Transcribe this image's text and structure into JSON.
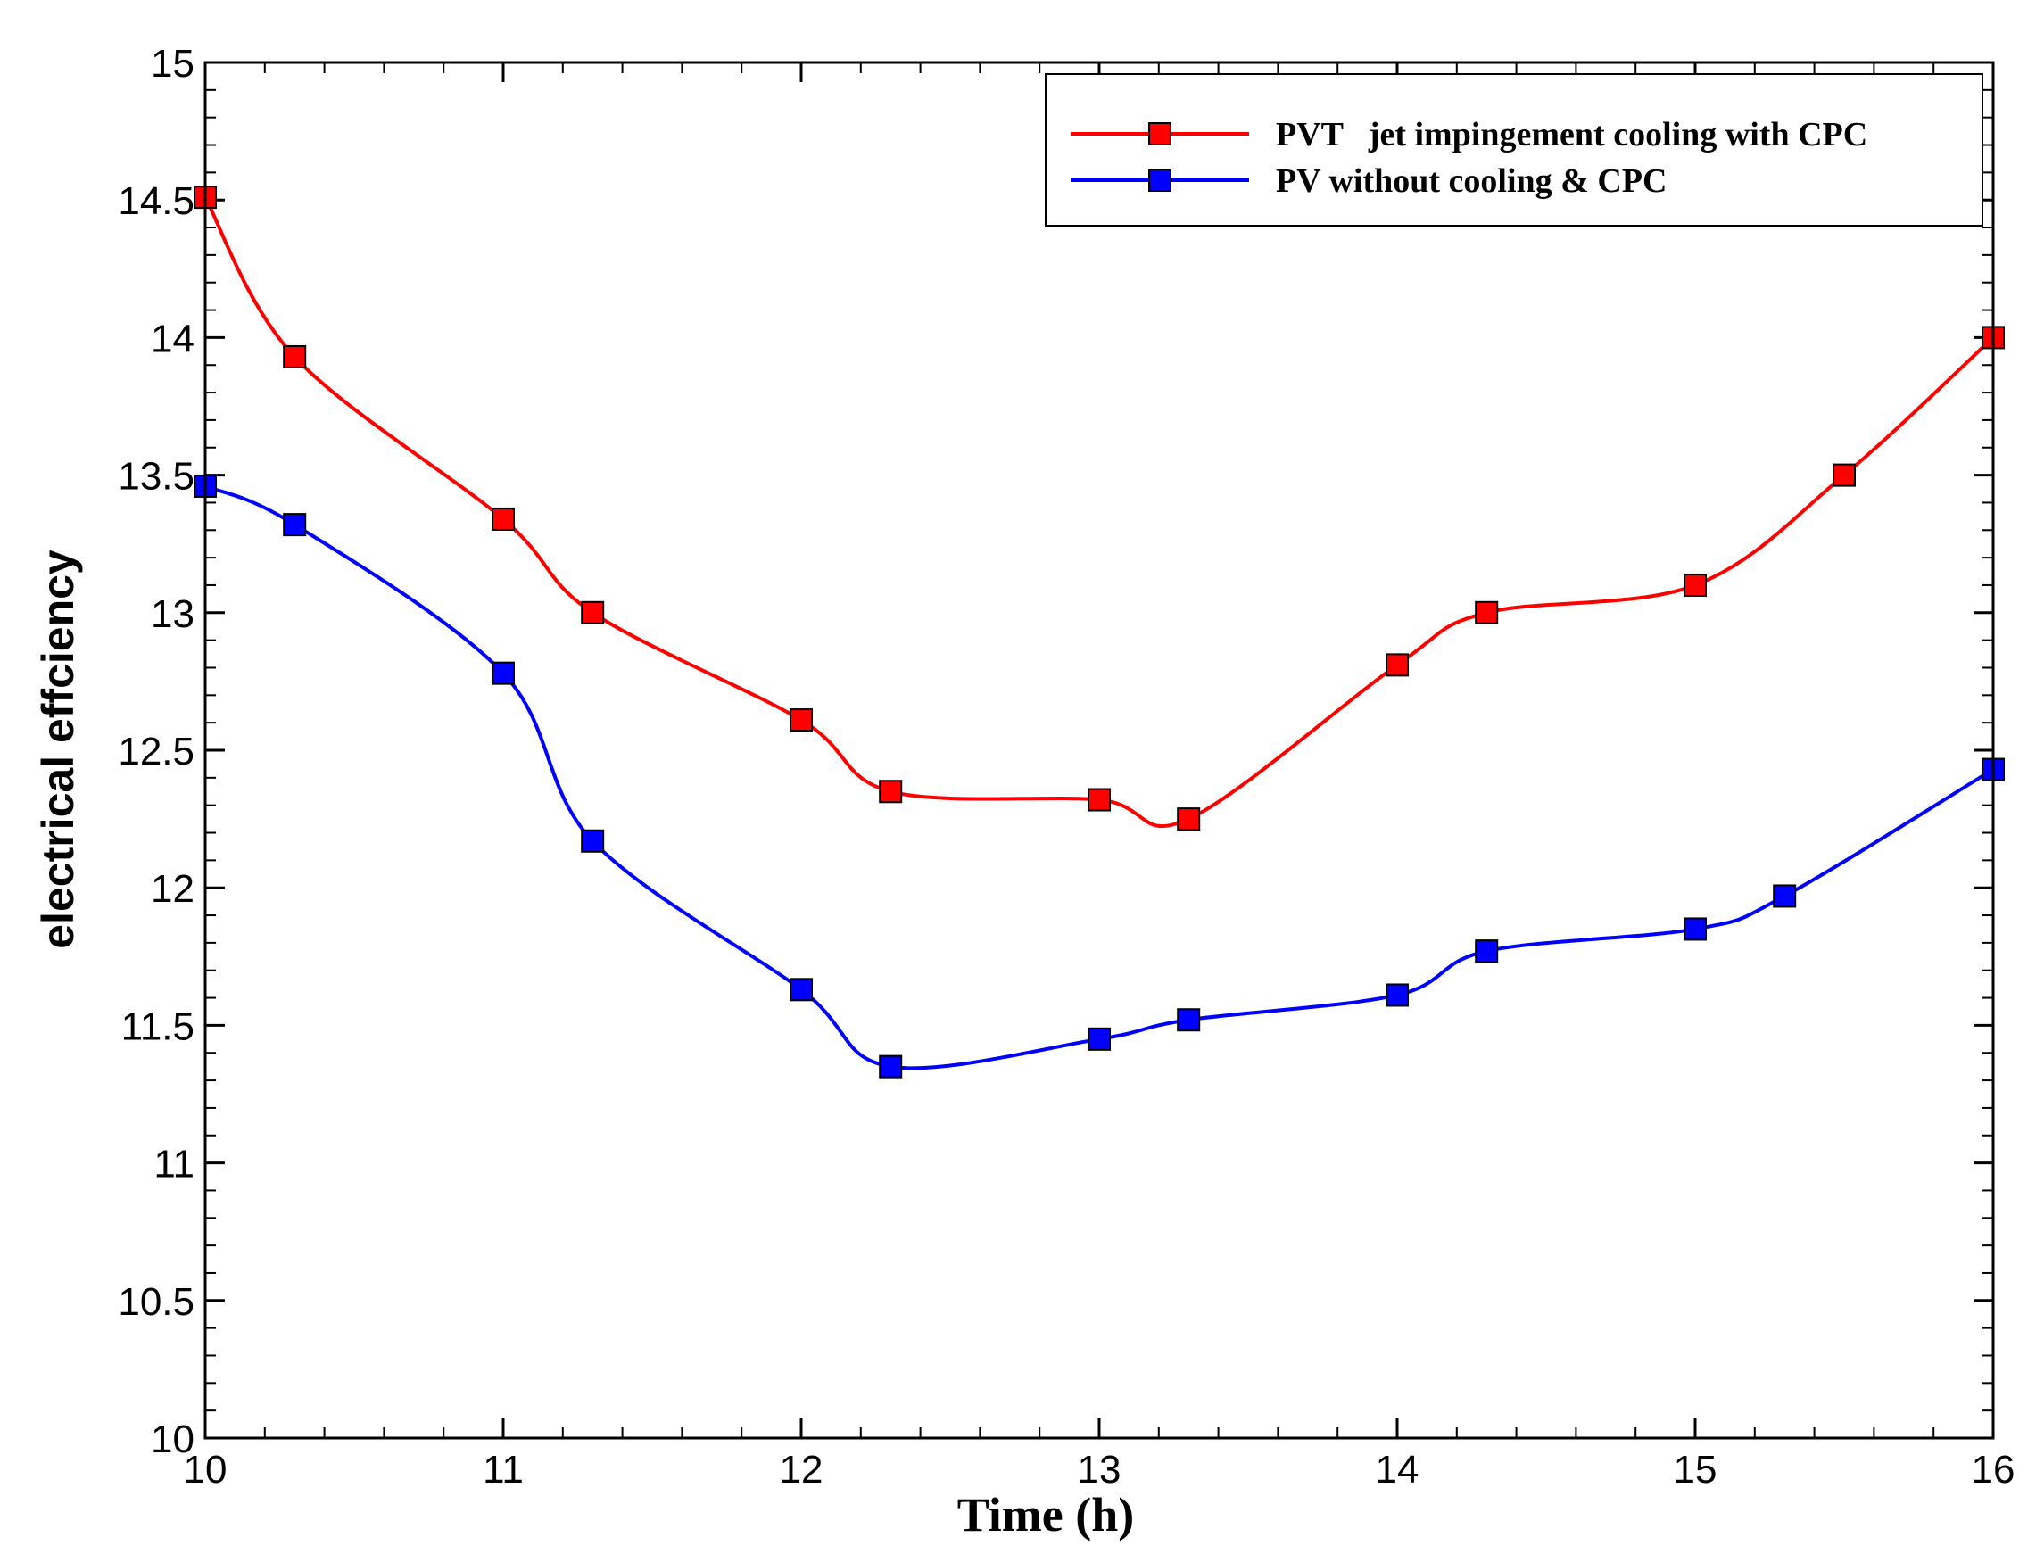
{
  "chart_data": {
    "type": "line",
    "title": "",
    "xlabel": "Time (h)",
    "ylabel": "electrical effciency",
    "xlim": [
      10,
      16
    ],
    "ylim": [
      10,
      15
    ],
    "x_ticks": [
      "10",
      "11",
      "12",
      "13",
      "14",
      "15",
      "16"
    ],
    "y_ticks": [
      "10",
      "10.5",
      "11",
      "11.5",
      "12",
      "12.5",
      "13",
      "13.5",
      "14",
      "14.5",
      "15"
    ],
    "x_minor_step": 0.2,
    "y_minor_step": 0.1,
    "grid": false,
    "legend_position": "top-right",
    "series": [
      {
        "name": "PVT   jet impingement cooling with CPC",
        "color": "#ff0000",
        "marker": "square",
        "x": [
          10,
          10.3,
          11,
          11.3,
          12,
          12.3,
          13,
          13.3,
          14,
          14.3,
          15,
          15.5,
          16
        ],
        "values": [
          14.51,
          13.93,
          13.34,
          13.0,
          12.61,
          12.35,
          12.32,
          12.25,
          12.81,
          13.0,
          13.1,
          13.5,
          14.0
        ]
      },
      {
        "name": "PV without cooling & CPC",
        "color": "#0000ff",
        "marker": "square",
        "x": [
          10,
          10.3,
          11,
          11.3,
          12,
          12.3,
          13,
          13.3,
          14,
          14.3,
          15,
          15.3,
          16
        ],
        "values": [
          13.46,
          13.32,
          12.78,
          12.17,
          11.63,
          11.35,
          11.45,
          11.52,
          11.61,
          11.77,
          11.85,
          11.97,
          12.43
        ]
      }
    ]
  }
}
